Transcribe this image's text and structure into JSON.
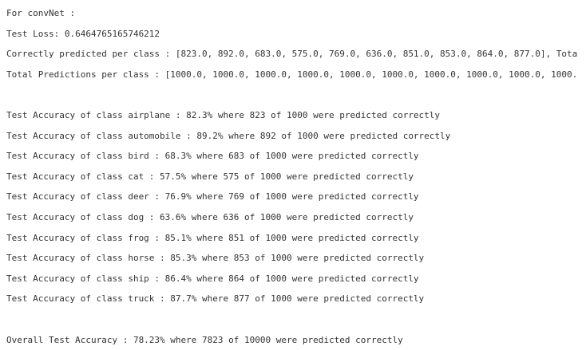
{
  "output": {
    "header_lines": [
      "For convNet :",
      "Test Loss: 0.6464765165746212",
      "Correctly predicted per class : [823.0, 892.0, 683.0, 575.0, 769.0, 636.0, 851.0, 853.0, 864.0, 877.0], Tota",
      "Total Predictions per class : [1000.0, 1000.0, 1000.0, 1000.0, 1000.0, 1000.0, 1000.0, 1000.0, 1000.0, 1000."
    ],
    "class_lines": [
      "Test Accuracy of class airplane : 82.3% where 823 of 1000 were predicted correctly",
      "Test Accuracy of class automobile : 89.2% where 892 of 1000 were predicted correctly",
      "Test Accuracy of class bird : 68.3% where 683 of 1000 were predicted correctly",
      "Test Accuracy of class cat : 57.5% where 575 of 1000 were predicted correctly",
      "Test Accuracy of class deer : 76.9% where 769 of 1000 were predicted correctly",
      "Test Accuracy of class dog : 63.6% where 636 of 1000 were predicted correctly",
      "Test Accuracy of class frog : 85.1% where 851 of 1000 were predicted correctly",
      "Test Accuracy of class horse : 85.3% where 853 of 1000 were predicted correctly",
      "Test Accuracy of class ship : 86.4% where 864 of 1000 were predicted correctly",
      "Test Accuracy of class truck : 87.7% where 877 of 1000 were predicted correctly"
    ],
    "overall_lines": [
      "Overall Test Accuracy : 78.23% where 7823 of 10000 were predicted correctly"
    ]
  }
}
